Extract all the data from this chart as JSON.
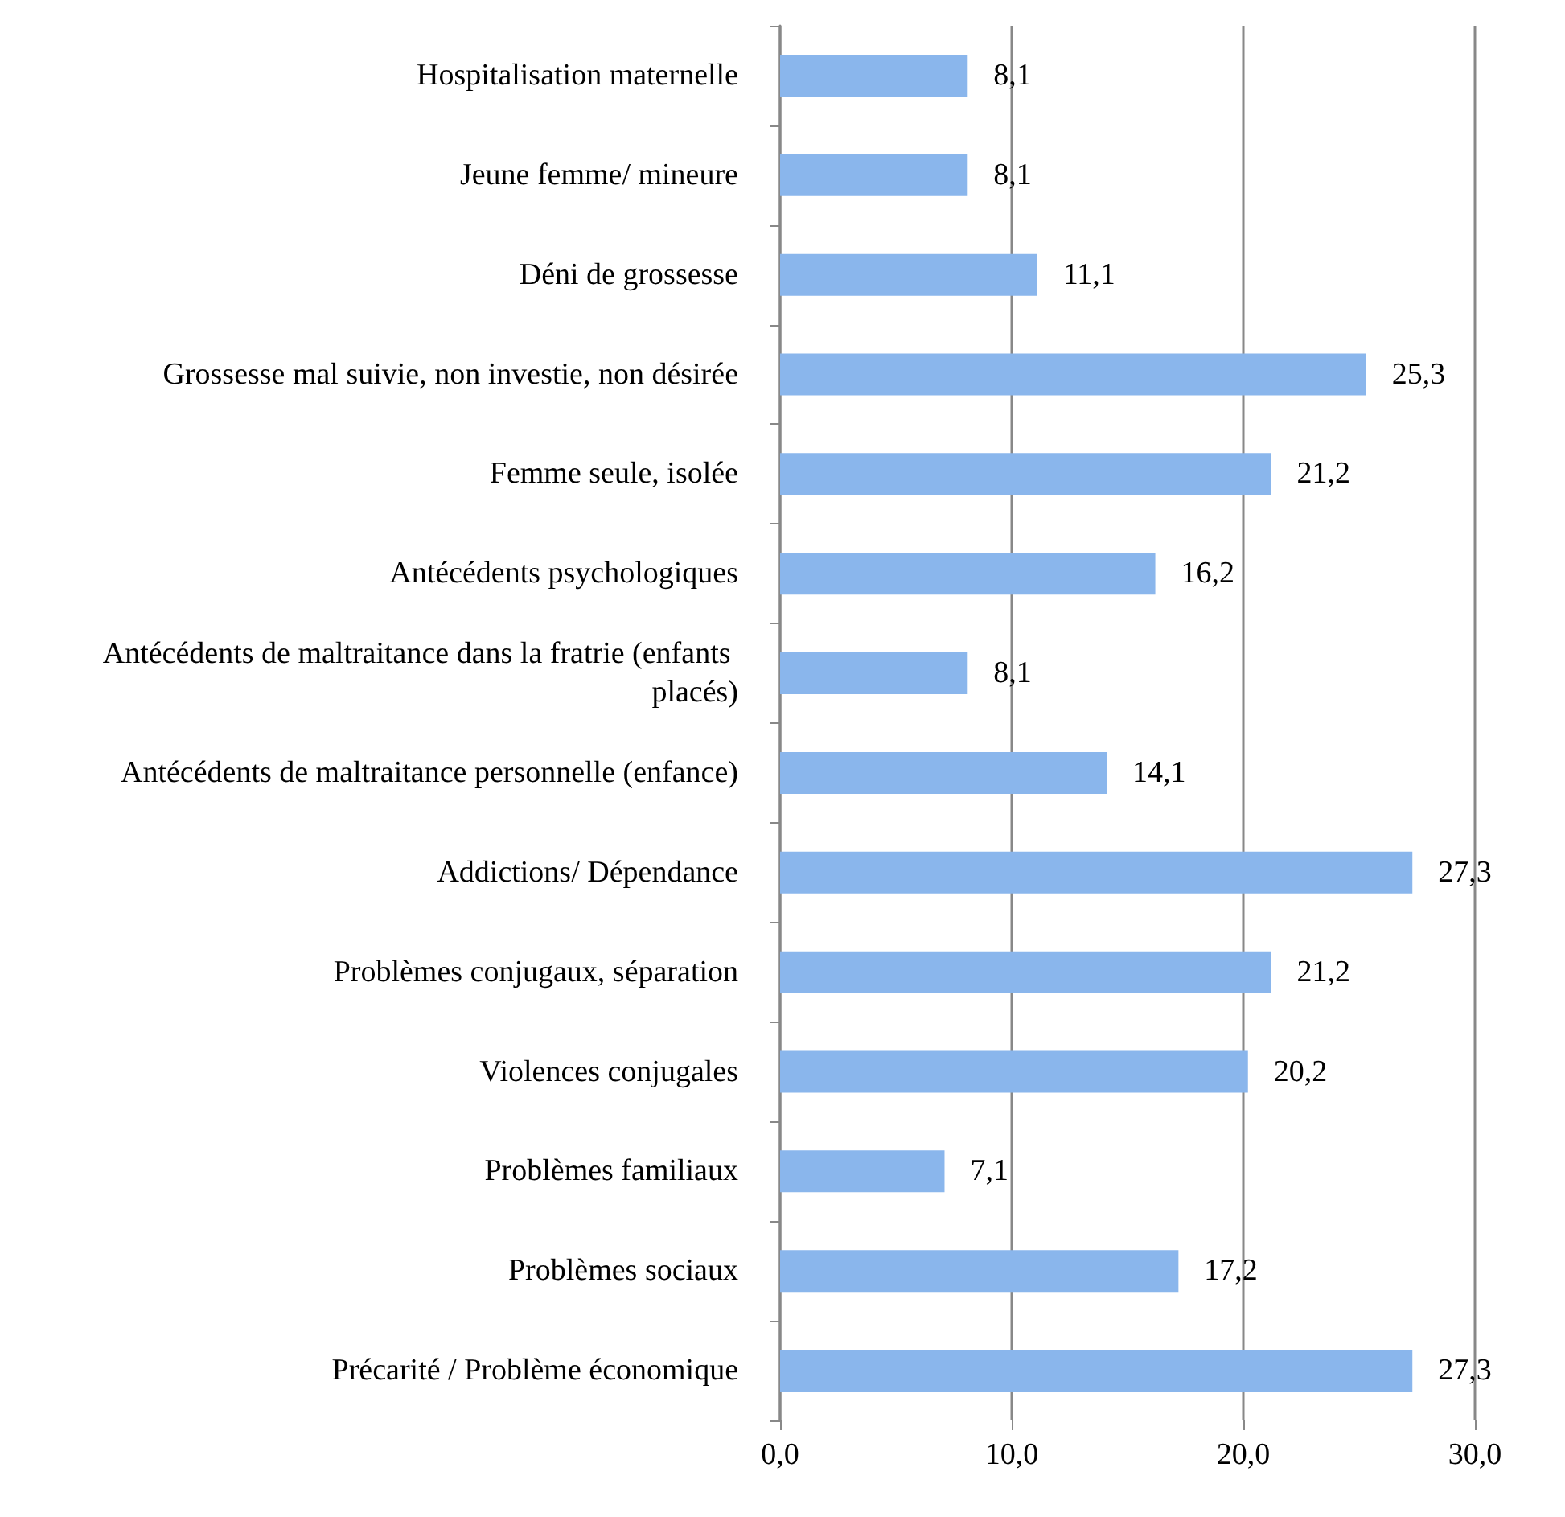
{
  "chart_data": {
    "type": "bar",
    "orientation": "horizontal",
    "categories": [
      "Hospitalisation maternelle",
      "Jeune femme/ mineure",
      "Déni de grossesse",
      "Grossesse mal suivie, non investie, non désirée",
      "Femme seule, isolée",
      "Antécédents psychologiques",
      "Antécédents de maltraitance dans la fratrie (enfants placés)",
      "Antécédents de maltraitance personnelle (enfance)",
      "Addictions/ Dépendance",
      "Problèmes conjugaux, séparation",
      "Violences conjugales",
      "Problèmes familiaux",
      "Problèmes sociaux",
      "Précarité / Problème économique"
    ],
    "values": [
      8.1,
      8.1,
      11.1,
      25.3,
      21.2,
      16.2,
      8.1,
      14.1,
      27.3,
      21.2,
      20.2,
      7.1,
      17.2,
      27.3
    ],
    "value_labels": [
      "8,1",
      "8,1",
      "11,1",
      "25,3",
      "21,2",
      "16,2",
      "8,1",
      "14,1",
      "27,3",
      "21,2",
      "20,2",
      "7,1",
      "17,2",
      "27,3"
    ],
    "color": "#8ab6ec",
    "xlim": [
      0,
      30
    ],
    "xticks": [
      {
        "value": 0,
        "label": "0,0"
      },
      {
        "value": 10,
        "label": "10,0"
      },
      {
        "value": 20,
        "label": "20,0"
      },
      {
        "value": 30,
        "label": "30,0"
      }
    ],
    "grid": "x"
  }
}
